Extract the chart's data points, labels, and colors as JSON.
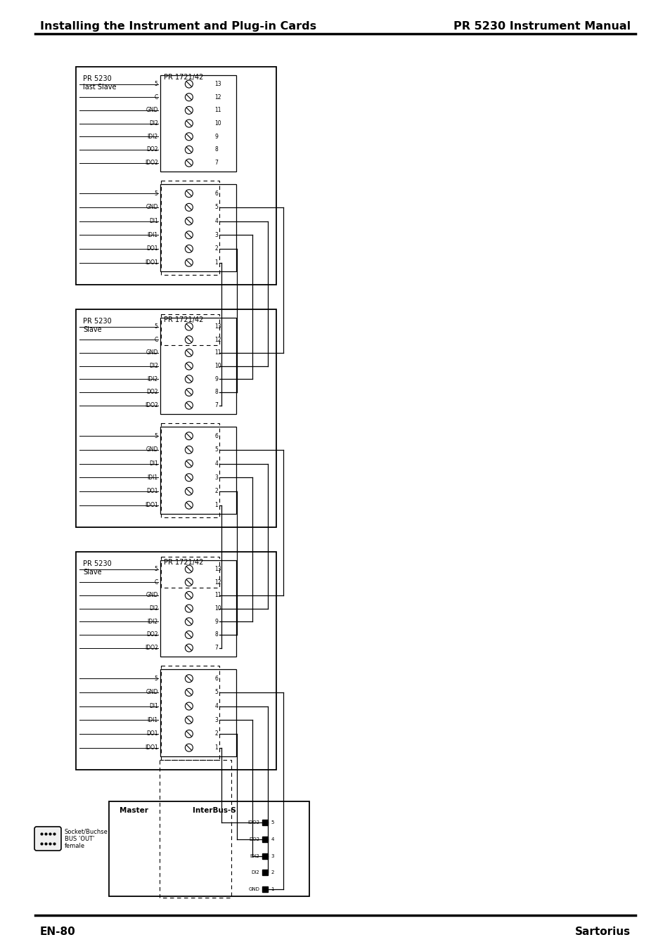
{
  "title_left": "Installing the Instrument and Plug-in Cards",
  "title_right": "PR 5230 Instrument Manual",
  "footer_left": "EN-80",
  "footer_right": "Sartorius",
  "bg_color": "#ffffff",
  "text_color": "#000000",
  "top_left_labels_top": [
    "5",
    "C",
    "GND",
    "DI2",
    "IDI2",
    "DO2",
    "IDO2"
  ],
  "top_right_labels_top": [
    "13",
    "12",
    "11",
    "10",
    "9",
    "8",
    "7"
  ],
  "top_left_labels_bot": [
    "5",
    "GND",
    "DI1",
    "IDI1",
    "DO1",
    "IDO1"
  ],
  "top_right_labels_bot": [
    "6",
    "5",
    "4",
    "3",
    "2",
    "1"
  ],
  "interbus_labels": [
    "IDO2",
    "DO2",
    "IDI2",
    "DI2",
    "GND"
  ],
  "interbus_right_nums": [
    "5",
    "4",
    "3",
    "2",
    "1"
  ]
}
